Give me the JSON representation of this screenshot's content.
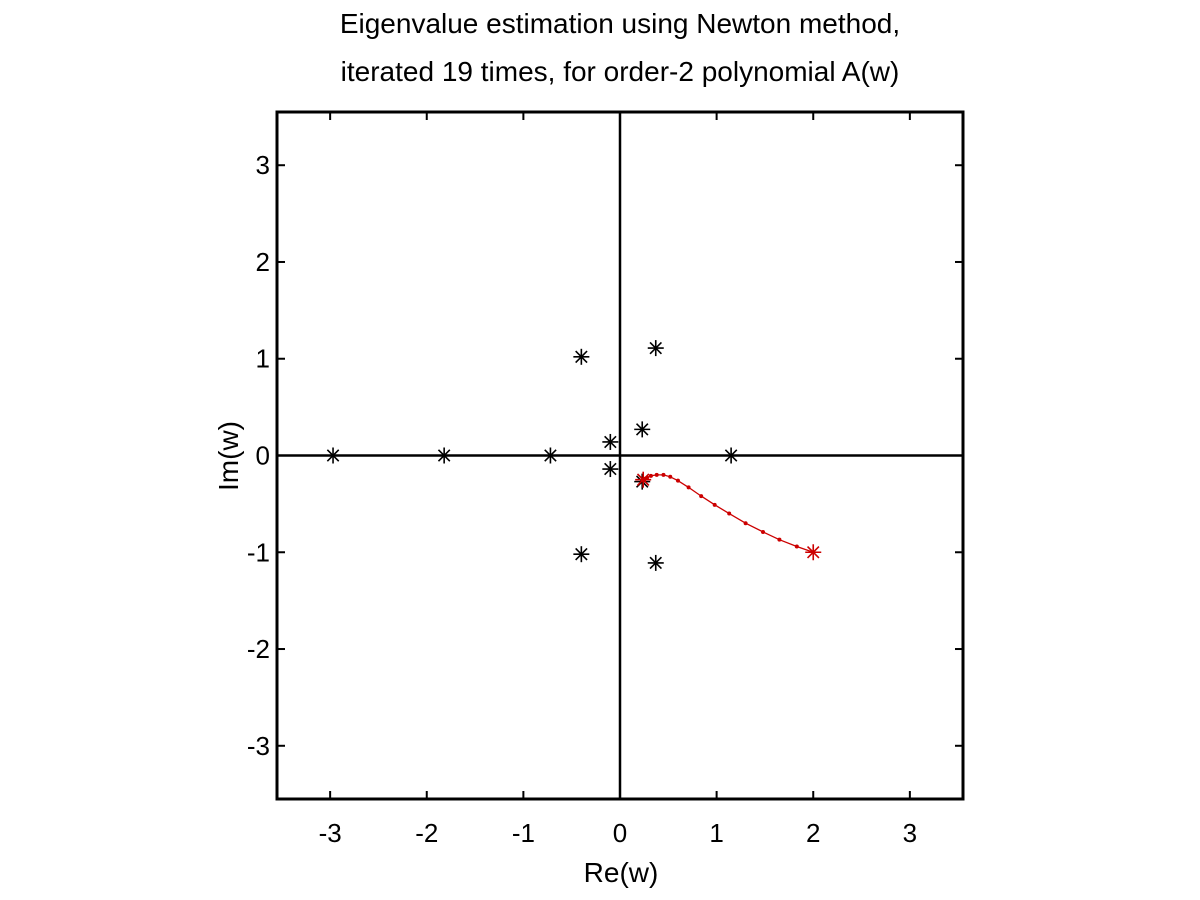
{
  "chart_data": {
    "type": "scatter",
    "title_lines": [
      "Eigenvalue estimation using Newton method,",
      "iterated 19 times, for order-2 polynomial A(w)"
    ],
    "xlabel": "Re(w)",
    "ylabel": "Im(w)",
    "xlim": [
      -3.55,
      3.55
    ],
    "ylim": [
      -3.55,
      3.55
    ],
    "xticks": [
      -3,
      -2,
      -1,
      0,
      1,
      2,
      3
    ],
    "yticks": [
      -3,
      -2,
      -1,
      0,
      1,
      2,
      3
    ],
    "grid": false,
    "series": [
      {
        "marker": "asterisk",
        "color": "#000000",
        "points": [
          [
            -2.97,
            0.0
          ],
          [
            -1.82,
            0.0
          ],
          [
            -0.72,
            0.0
          ],
          [
            1.15,
            0.0
          ],
          [
            -0.4,
            1.02
          ],
          [
            -0.4,
            -1.02
          ],
          [
            0.37,
            1.11
          ],
          [
            0.37,
            -1.11
          ],
          [
            -0.1,
            0.14
          ],
          [
            -0.1,
            -0.14
          ],
          [
            0.23,
            0.27
          ],
          [
            0.23,
            -0.27
          ]
        ]
      },
      {
        "marker": "dot-line",
        "color": "#cc0000",
        "points": [
          [
            2.0,
            -1.0
          ],
          [
            1.83,
            -0.94
          ],
          [
            1.65,
            -0.87
          ],
          [
            1.48,
            -0.79
          ],
          [
            1.3,
            -0.7
          ],
          [
            1.13,
            -0.6
          ],
          [
            0.98,
            -0.51
          ],
          [
            0.84,
            -0.42
          ],
          [
            0.71,
            -0.33
          ],
          [
            0.6,
            -0.26
          ],
          [
            0.52,
            -0.22
          ],
          [
            0.45,
            -0.2
          ],
          [
            0.38,
            -0.2
          ],
          [
            0.32,
            -0.21
          ],
          [
            0.28,
            -0.23
          ],
          [
            0.26,
            -0.24
          ],
          [
            0.25,
            -0.25
          ],
          [
            0.25,
            -0.25
          ],
          [
            0.24,
            -0.25
          ],
          [
            0.24,
            -0.25
          ]
        ],
        "start_marker": [
          2.0,
          -1.0
        ],
        "end_marker": [
          0.24,
          -0.25
        ]
      }
    ]
  }
}
